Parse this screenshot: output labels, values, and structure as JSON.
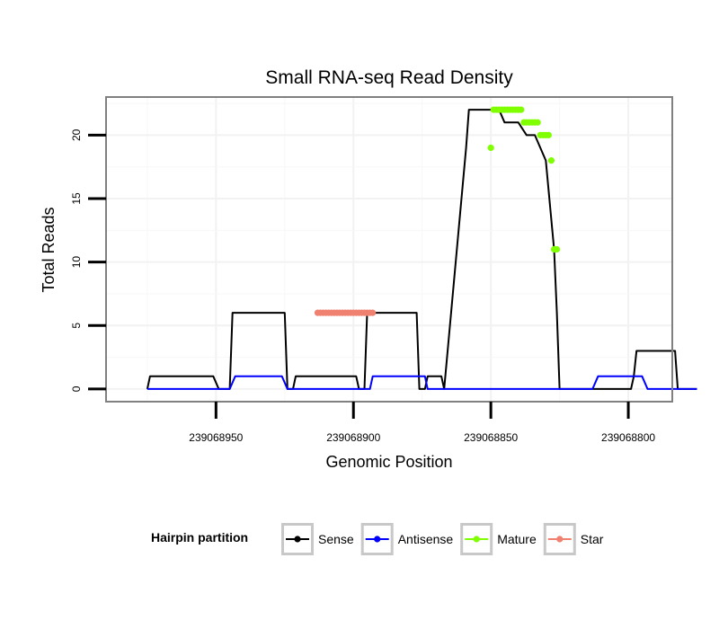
{
  "chart_data": {
    "type": "line",
    "title": "Small RNA-seq Read Density",
    "xlabel": "Genomic Position",
    "ylabel": "Total Reads",
    "x_reversed": true,
    "xlim": [
      239068990,
      239068784
    ],
    "ylim": [
      -1,
      23
    ],
    "x_ticks": [
      239068950,
      239068900,
      239068850,
      239068800
    ],
    "x_tick_labels": [
      "239068950",
      "239068900",
      "239068850",
      "239068800"
    ],
    "y_ticks": [
      0,
      5,
      10,
      15,
      20
    ],
    "y_tick_labels": [
      "0",
      "5",
      "10",
      "15",
      "20"
    ],
    "grid": true,
    "legend": {
      "title": "Hairpin partition",
      "position": "bottom",
      "entries": [
        {
          "label": "Sense",
          "color": "#000000"
        },
        {
          "label": "Antisense",
          "color": "#0000ff"
        },
        {
          "label": "Mature",
          "color": "#7fff00"
        },
        {
          "label": "Star",
          "color": "#f08070"
        }
      ]
    },
    "series": [
      {
        "name": "Sense",
        "color": "#000000",
        "x": [
          239068975,
          239068974,
          239068951,
          239068949,
          239068945,
          239068944,
          239068925,
          239068924,
          239068922,
          239068921,
          239068899,
          239068898,
          239068896,
          239068895,
          239068877,
          239068876,
          239068874,
          239068873,
          239068868,
          239068867,
          239068859,
          239068858,
          239068850,
          239068849,
          239068847,
          239068845,
          239068843,
          239068840,
          239068837,
          239068834,
          239068832,
          239068830,
          239068827,
          239068826,
          239068825,
          239068814,
          239068813,
          239068812,
          239068799,
          239068798,
          239068797,
          239068783,
          239068782,
          239068775
        ],
        "y": [
          0,
          1,
          1,
          0,
          0,
          6,
          6,
          0,
          0,
          1,
          1,
          0,
          0,
          6,
          6,
          0,
          0,
          1,
          1,
          0,
          19,
          22,
          22,
          22,
          22,
          21,
          21,
          21,
          20,
          20,
          19,
          18,
          11,
          6,
          0,
          0,
          0,
          0,
          0,
          1,
          3,
          3,
          0,
          0
        ]
      },
      {
        "name": "Antisense",
        "color": "#0000ff",
        "x": [
          239068975,
          239068945,
          239068943,
          239068926,
          239068924,
          239068913,
          239068912,
          239068910,
          239068894,
          239068893,
          239068874,
          239068873,
          239068855,
          239068813,
          239068811,
          239068795,
          239068793,
          239068775
        ],
        "y": [
          0,
          0,
          1,
          1,
          0,
          0,
          0,
          0,
          0,
          1,
          1,
          0,
          0,
          0,
          1,
          1,
          0,
          0
        ]
      }
    ],
    "markers": [
      {
        "name": "Mature",
        "color": "#7fff00",
        "x": [
          239068850,
          239068849,
          239068848,
          239068847,
          239068846,
          239068845,
          239068844,
          239068843,
          239068842,
          239068841,
          239068840,
          239068839,
          239068838,
          239068837,
          239068836,
          239068835,
          239068834,
          239068833,
          239068832,
          239068831,
          239068830,
          239068829,
          239068828,
          239068827,
          239068826
        ],
        "y": [
          19,
          22,
          22,
          22,
          22,
          22,
          22,
          22,
          22,
          22,
          22,
          22,
          21,
          21,
          21,
          21,
          21,
          21,
          20,
          20,
          20,
          20,
          18,
          11,
          11
        ]
      },
      {
        "name": "Star",
        "color": "#f08070",
        "x": [
          239068913,
          239068912,
          239068911,
          239068910,
          239068909,
          239068908,
          239068907,
          239068906,
          239068905,
          239068904,
          239068903,
          239068902,
          239068901,
          239068900,
          239068899,
          239068898,
          239068897,
          239068896,
          239068895,
          239068894,
          239068893
        ],
        "y": [
          6,
          6,
          6,
          6,
          6,
          6,
          6,
          6,
          6,
          6,
          6,
          6,
          6,
          6,
          6,
          6,
          6,
          6,
          6,
          6,
          6
        ]
      }
    ]
  }
}
